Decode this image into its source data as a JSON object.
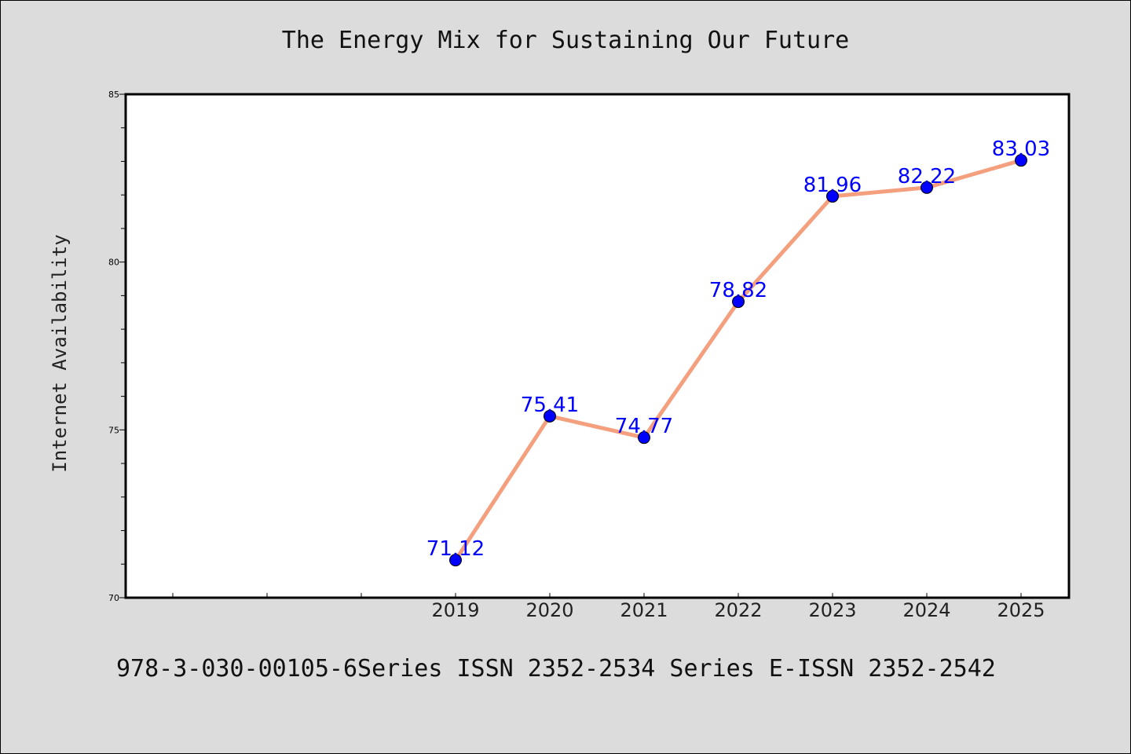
{
  "chart_data": {
    "type": "line",
    "title": "The Energy Mix for Sustaining Our Future",
    "xlabel": "",
    "ylabel": "Internet Availability",
    "categories": [
      "2019",
      "2020",
      "2021",
      "2022",
      "2023",
      "2024",
      "2025"
    ],
    "series": [
      {
        "values": [
          71.12,
          75.41,
          74.77,
          78.82,
          81.96,
          82.22,
          83.03
        ],
        "line_color": "#f4a07e",
        "marker_color": "#0000ff"
      }
    ],
    "data_labels": [
      "71.12",
      "75.41",
      "74.77",
      "78.82",
      "81.96",
      "82.22",
      "83.03"
    ],
    "ylim": [
      70,
      85
    ],
    "yticks": [
      "70",
      "75",
      "80",
      "85"
    ],
    "grid": false,
    "legend": "none",
    "label_color": "#0000ff"
  },
  "footer": {
    "text": "978-3-030-00105-6Series ISSN 2352-2534 Series E-ISSN 2352-2542"
  }
}
